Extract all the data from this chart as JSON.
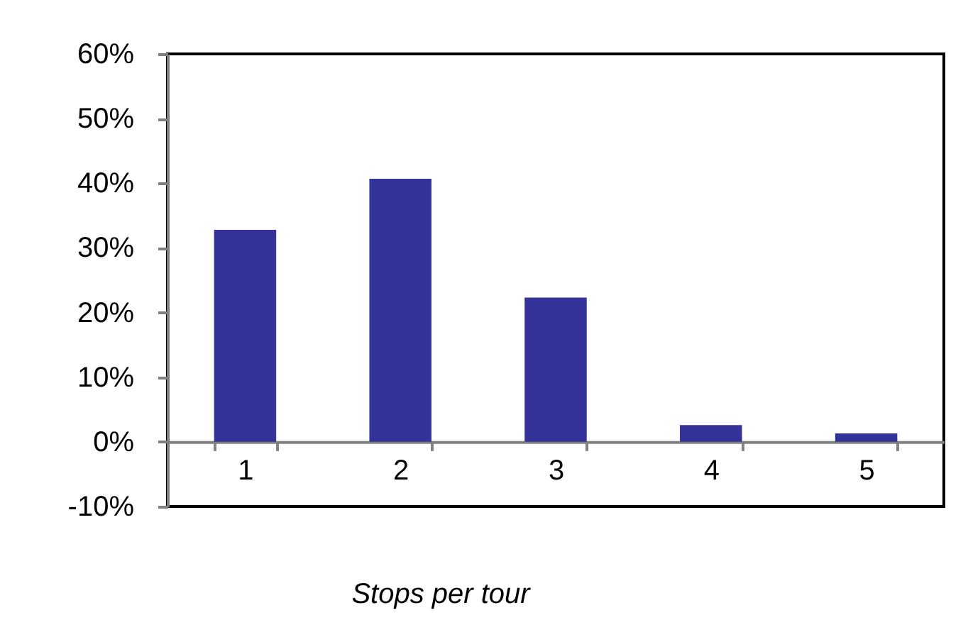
{
  "chart_data": {
    "type": "bar",
    "xlabel": "Stops per tour",
    "categories": [
      "1",
      "2",
      "3",
      "4",
      "5"
    ],
    "values": [
      32.8,
      40.7,
      22.3,
      2.6,
      1.3
    ],
    "color": "#333399",
    "ylim": [
      -10,
      60
    ],
    "yticks": [
      {
        "value": -10,
        "label": "-10%"
      },
      {
        "value": 0,
        "label": "0%"
      },
      {
        "value": 10,
        "label": "10%"
      },
      {
        "value": 20,
        "label": "20%"
      },
      {
        "value": 30,
        "label": "30%"
      },
      {
        "value": 40,
        "label": "40%"
      },
      {
        "value": 50,
        "label": "50%"
      },
      {
        "value": 60,
        "label": "60%"
      }
    ]
  }
}
